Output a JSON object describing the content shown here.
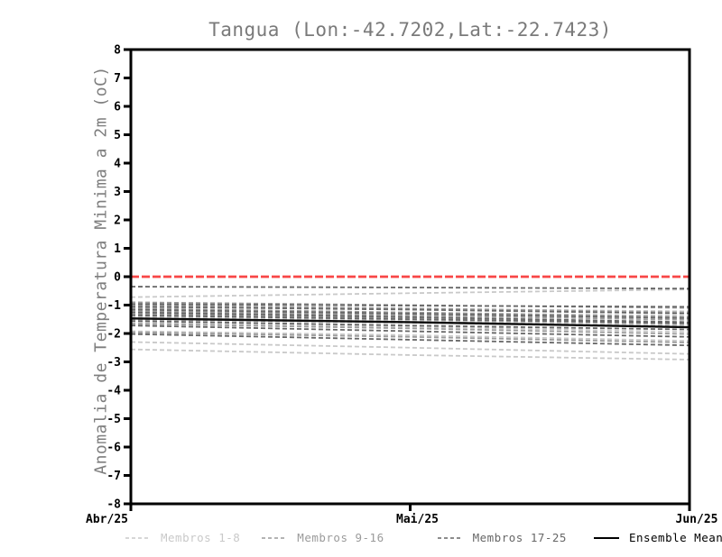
{
  "chart_data": {
    "type": "line",
    "title": "Tangua (Lon:-42.7202,Lat:-22.7423)",
    "ylabel": "Anomalia de Temperatura Minima a 2m (oC)",
    "xlabel": "",
    "x": [
      "Abr/25",
      "Mai/25",
      "Jun/25"
    ],
    "ylim": [
      -8,
      8
    ],
    "yticks": [
      8,
      7,
      6,
      5,
      4,
      3,
      2,
      1,
      0,
      -1,
      -2,
      -3,
      -4,
      -5,
      -6,
      -7,
      -8
    ],
    "grid": false,
    "legend_position": "bottom",
    "zero_line": {
      "value": 0,
      "color": "#f84646",
      "style": "dashed"
    },
    "groups": [
      {
        "name": "Membros 1-8",
        "color": "#c9c9c9",
        "style": "dashed",
        "members": [
          {
            "name": "1",
            "values": [
              -0.72,
              -0.58,
              -0.45
            ]
          },
          {
            "name": "2",
            "values": [
              -1.02,
              -1.12,
              -1.22
            ]
          },
          {
            "name": "3",
            "values": [
              -1.22,
              -1.32,
              -1.46
            ]
          },
          {
            "name": "4",
            "values": [
              -1.42,
              -1.56,
              -1.7
            ]
          },
          {
            "name": "5",
            "values": [
              -1.62,
              -1.76,
              -1.95
            ]
          },
          {
            "name": "6",
            "values": [
              -1.92,
              -2.06,
              -2.26
            ]
          },
          {
            "name": "7",
            "values": [
              -2.3,
              -2.5,
              -2.72
            ]
          },
          {
            "name": "8",
            "values": [
              -2.56,
              -2.76,
              -2.92
            ]
          }
        ]
      },
      {
        "name": "Membros 9-16",
        "color": "#9b9b9b",
        "style": "dashed",
        "members": [
          {
            "name": "9",
            "values": [
              -0.9,
              -1.0,
              -1.1
            ]
          },
          {
            "name": "10",
            "values": [
              -1.0,
              -1.12,
              -1.26
            ]
          },
          {
            "name": "11",
            "values": [
              -1.12,
              -1.26,
              -1.4
            ]
          },
          {
            "name": "12",
            "values": [
              -1.22,
              -1.36,
              -1.52
            ]
          },
          {
            "name": "13",
            "values": [
              -1.32,
              -1.46,
              -1.66
            ]
          },
          {
            "name": "14",
            "values": [
              -1.5,
              -1.62,
              -1.76
            ]
          },
          {
            "name": "15",
            "values": [
              -1.66,
              -1.82,
              -2.02
            ]
          },
          {
            "name": "16",
            "values": [
              -1.96,
              -2.12,
              -2.32
            ]
          }
        ]
      },
      {
        "name": "Membros 17-25",
        "color": "#676767",
        "style": "dashed",
        "members": [
          {
            "name": "17",
            "values": [
              -0.35,
              -0.38,
              -0.42
            ]
          },
          {
            "name": "18",
            "values": [
              -0.96,
              -1.02,
              -1.06
            ]
          },
          {
            "name": "19",
            "values": [
              -1.06,
              -1.16,
              -1.3
            ]
          },
          {
            "name": "20",
            "values": [
              -1.16,
              -1.3,
              -1.46
            ]
          },
          {
            "name": "21",
            "values": [
              -1.26,
              -1.42,
              -1.6
            ]
          },
          {
            "name": "22",
            "values": [
              -1.36,
              -1.5,
              -1.64
            ]
          },
          {
            "name": "23",
            "values": [
              -1.56,
              -1.72,
              -1.86
            ]
          },
          {
            "name": "24",
            "values": [
              -1.72,
              -1.92,
              -2.12
            ]
          },
          {
            "name": "25",
            "values": [
              -2.02,
              -2.22,
              -2.42
            ]
          }
        ]
      }
    ],
    "mean": {
      "name": "Ensemble Mean",
      "color": "#0d0d0d",
      "style": "solid",
      "values": [
        -1.47,
        -1.6,
        -1.78
      ]
    }
  }
}
